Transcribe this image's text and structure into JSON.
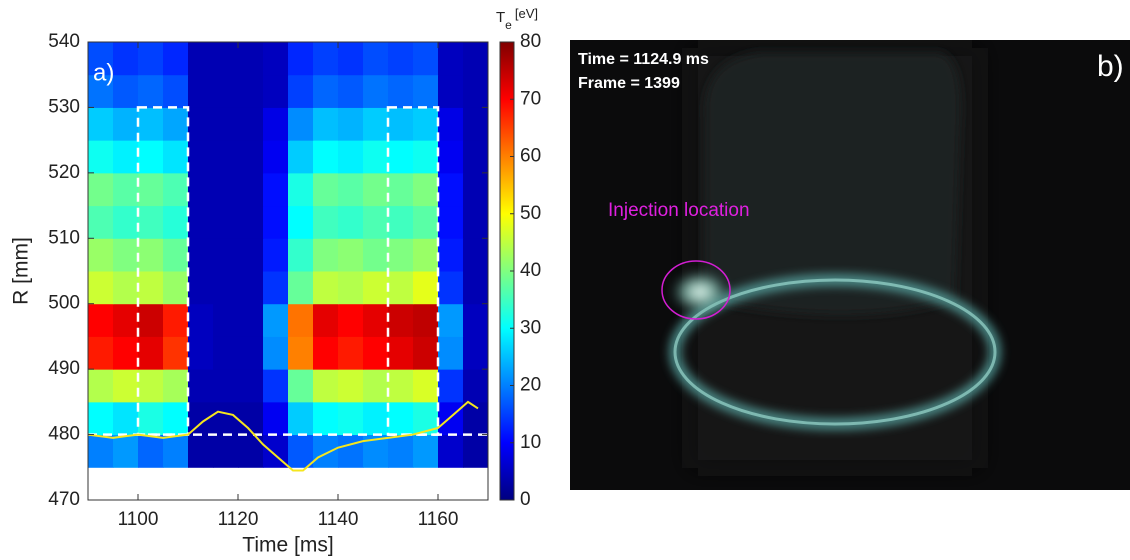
{
  "chart_data": [
    {
      "type": "heatmap",
      "panel_label": "a)",
      "x_label": "Time [ms]",
      "y_label": "R [mm]",
      "xlim": [
        1090,
        1170
      ],
      "xticks": [
        1100,
        1120,
        1140,
        1160
      ],
      "ylim": [
        470,
        540
      ],
      "yticks": [
        470,
        480,
        490,
        500,
        510,
        520,
        530,
        540
      ],
      "x_bins": [
        1090,
        1095,
        1100,
        1105,
        1110,
        1115,
        1120,
        1125,
        1130,
        1135,
        1140,
        1145,
        1150,
        1155,
        1160,
        1165,
        1170
      ],
      "y_bins": [
        475,
        480,
        485,
        490,
        495,
        500,
        505,
        510,
        515,
        520,
        525,
        530,
        535,
        540
      ],
      "z": [
        [
          20,
          22,
          18,
          20,
          3,
          3,
          3,
          6,
          17,
          20,
          19,
          21,
          20,
          22,
          6,
          3
        ],
        [
          30,
          28,
          32,
          30,
          3,
          3,
          3,
          9,
          26,
          30,
          31,
          29,
          30,
          32,
          9,
          3
        ],
        [
          44,
          46,
          45,
          43,
          4,
          4,
          4,
          14,
          38,
          45,
          46,
          44,
          45,
          47,
          14,
          4
        ],
        [
          68,
          70,
          72,
          66,
          5,
          4,
          4,
          21,
          60,
          70,
          68,
          70,
          72,
          74,
          21,
          5
        ],
        [
          70,
          72,
          74,
          68,
          5,
          4,
          4,
          22,
          61,
          72,
          70,
          72,
          74,
          75,
          22,
          5
        ],
        [
          46,
          44,
          45,
          42,
          4,
          4,
          4,
          14,
          38,
          45,
          44,
          46,
          45,
          48,
          14,
          4
        ],
        [
          42,
          40,
          41,
          38,
          4,
          4,
          4,
          12,
          34,
          40,
          41,
          39,
          40,
          42,
          12,
          4
        ],
        [
          36,
          34,
          35,
          33,
          4,
          4,
          4,
          11,
          30,
          35,
          34,
          36,
          35,
          37,
          11,
          4
        ],
        [
          39,
          37,
          38,
          36,
          4,
          4,
          4,
          11,
          32,
          38,
          37,
          39,
          38,
          40,
          11,
          4
        ],
        [
          31,
          29,
          30,
          28,
          4,
          4,
          4,
          9,
          26,
          30,
          29,
          31,
          30,
          31,
          9,
          4
        ],
        [
          26,
          24,
          25,
          23,
          4,
          4,
          4,
          8,
          21,
          25,
          24,
          26,
          25,
          26,
          8,
          4
        ],
        [
          19,
          17,
          18,
          16,
          4,
          4,
          4,
          5,
          15,
          18,
          17,
          19,
          18,
          19,
          5,
          4
        ],
        [
          16,
          14,
          15,
          13,
          4,
          4,
          4,
          5,
          13,
          15,
          14,
          16,
          15,
          16,
          5,
          4
        ]
      ],
      "colormap": "jet",
      "clim": [
        0,
        80
      ],
      "cticks": [
        0,
        10,
        20,
        30,
        40,
        50,
        60,
        70,
        80
      ],
      "colorbar_label": "T",
      "colorbar_label_sub": "e",
      "colorbar_unit": "[eV]",
      "line": {
        "color": "#f5e61e",
        "x": [
          1090,
          1095,
          1100,
          1105,
          1110,
          1113,
          1116,
          1119,
          1122,
          1125,
          1128,
          1131,
          1133,
          1136,
          1140,
          1145,
          1150,
          1155,
          1160,
          1163,
          1166,
          1168
        ],
        "y": [
          480,
          479.5,
          480,
          479.5,
          480,
          482,
          483.5,
          483,
          481,
          478.5,
          476.5,
          474.5,
          474.5,
          476.5,
          478,
          479,
          479.5,
          480,
          481,
          483,
          485,
          484
        ]
      },
      "dashed_boxes": [
        {
          "x": [
            1100,
            1110
          ],
          "y": [
            480,
            530
          ]
        },
        {
          "x": [
            1150,
            1160
          ],
          "y": [
            480,
            530
          ]
        }
      ],
      "dashed_line_y": 480
    },
    {
      "type": "image",
      "time_text": "Time = 1124.9 ms",
      "frame_text": "Frame = 1399",
      "annotation": "Injection location",
      "panel_label": "b)"
    }
  ]
}
